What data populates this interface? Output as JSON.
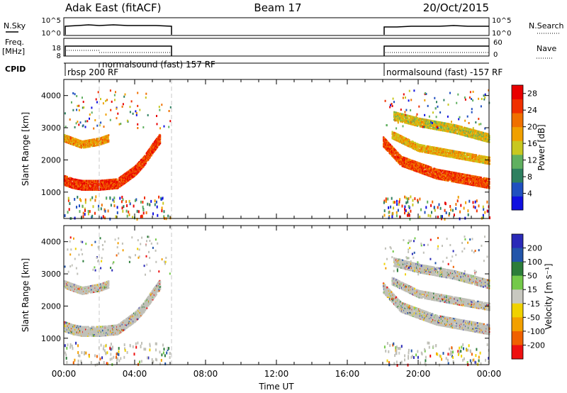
{
  "header": {
    "left_title": "Adak East (fitACF)",
    "center_title": "Beam 17",
    "right_title": "20/Oct/2015"
  },
  "top_panels": {
    "nsky_label": "N.Sky",
    "nsky_ticks": [
      "10^5",
      "10^0"
    ],
    "nsearch_label": "N.Search",
    "nsearch_ticks": [
      "10^5",
      "10^0"
    ],
    "freq_label_line1": "Freq.",
    "freq_label_line2": "[MHz]",
    "freq_ticks": [
      "18",
      "8"
    ],
    "nave_label": "Nave",
    "nave_ticks": [
      "60",
      "0"
    ],
    "cpid_label": "CPID",
    "cpid_entries": [
      "rbsp 200 RF",
      "normalsound (fast) 157 RF",
      "normalsound (fast) -157 RF"
    ]
  },
  "chart_data": [
    {
      "type": "heatmap",
      "parameter": "Power",
      "ylabel": "Slant Range [km]",
      "xlabel": "",
      "ylim": [
        180,
        4500
      ],
      "x_range_hours": [
        0,
        24
      ],
      "yticks": [
        1000,
        2000,
        3000,
        4000
      ],
      "colorbar_label": "Power [dB]",
      "colorbar_ticks": [
        4,
        8,
        12,
        16,
        20,
        24,
        28
      ],
      "colorbar_range": [
        0,
        30
      ],
      "data_gaps_hours": [
        [
          6,
          18
        ]
      ],
      "bands": [
        {
          "t": [
            0.0,
            0.5,
            1.0,
            2.0,
            3.0,
            3.5,
            4.0,
            4.5,
            5.0,
            5.4
          ],
          "r": [
            1400,
            1300,
            1250,
            1250,
            1300,
            1500,
            1700,
            2000,
            2400,
            2700
          ],
          "width": 300,
          "value": 26
        },
        {
          "t": [
            0.0,
            1.0,
            2.0,
            2.5
          ],
          "r": [
            2700,
            2500,
            2600,
            2700
          ],
          "width": 200,
          "value": 20
        },
        {
          "t": [
            18.0,
            19.0,
            20.0,
            21.0,
            22.0,
            23.0,
            24.0
          ],
          "r": [
            2600,
            2000,
            1800,
            1600,
            1500,
            1400,
            1300
          ],
          "width": 300,
          "value": 25
        },
        {
          "t": [
            18.5,
            20.0,
            22.0,
            24.0
          ],
          "r": [
            2800,
            2400,
            2200,
            2000
          ],
          "width": 200,
          "value": 18
        },
        {
          "t": [
            18.6,
            20.0,
            22.0,
            24.0
          ],
          "r": [
            3400,
            3200,
            3000,
            2700
          ],
          "width": 250,
          "value": 16
        }
      ]
    },
    {
      "type": "heatmap",
      "parameter": "Velocity",
      "ylabel": "Slant Range [km]",
      "xlabel": "Time UT",
      "ylim": [
        180,
        4500
      ],
      "x_range_hours": [
        0,
        24
      ],
      "xticks": [
        "00:00",
        "04:00",
        "08:00",
        "12:00",
        "16:00",
        "20:00",
        "00:00"
      ],
      "yticks": [
        1000,
        2000,
        3000,
        4000
      ],
      "colorbar_label": "Velocity [m s⁻¹]",
      "colorbar_ticks": [
        200,
        100,
        50,
        15,
        -15,
        -50,
        -100,
        -200
      ],
      "data_gaps_hours": [
        [
          6,
          18
        ]
      ],
      "bands": [
        {
          "t": [
            0.0,
            0.5,
            1.0,
            2.0,
            3.0,
            3.5,
            4.0,
            4.5,
            5.0,
            5.4
          ],
          "r": [
            1400,
            1300,
            1250,
            1250,
            1300,
            1500,
            1700,
            2000,
            2400,
            2700
          ],
          "width": 300,
          "value": 0
        },
        {
          "t": [
            0.0,
            1.0,
            2.0,
            2.5
          ],
          "r": [
            2700,
            2500,
            2600,
            2700
          ],
          "width": 200,
          "value": 0
        },
        {
          "t": [
            18.0,
            19.0,
            20.0,
            21.0,
            22.0,
            23.0,
            24.0
          ],
          "r": [
            2600,
            2000,
            1800,
            1600,
            1500,
            1400,
            1300
          ],
          "width": 300,
          "value": 0
        },
        {
          "t": [
            18.5,
            20.0,
            22.0,
            24.0
          ],
          "r": [
            2800,
            2400,
            2200,
            2000
          ],
          "width": 200,
          "value": 0
        },
        {
          "t": [
            18.6,
            20.0,
            22.0,
            24.0
          ],
          "r": [
            3400,
            3200,
            3000,
            2700
          ],
          "width": 250,
          "value": 0
        }
      ]
    }
  ],
  "colors": {
    "power_scale": [
      "#1010e0",
      "#2050c0",
      "#2e8060",
      "#60b060",
      "#c8c820",
      "#f0a000",
      "#f07000",
      "#f03000",
      "#e80000"
    ],
    "velocity_scale": [
      "#2a2ab8",
      "#2255aa",
      "#2c7d3a",
      "#74c94a",
      "#c8c8c0",
      "#f0d200",
      "#f3a000",
      "#f06000",
      "#ee1010"
    ],
    "ground_scatter": "#c0c0b8"
  }
}
